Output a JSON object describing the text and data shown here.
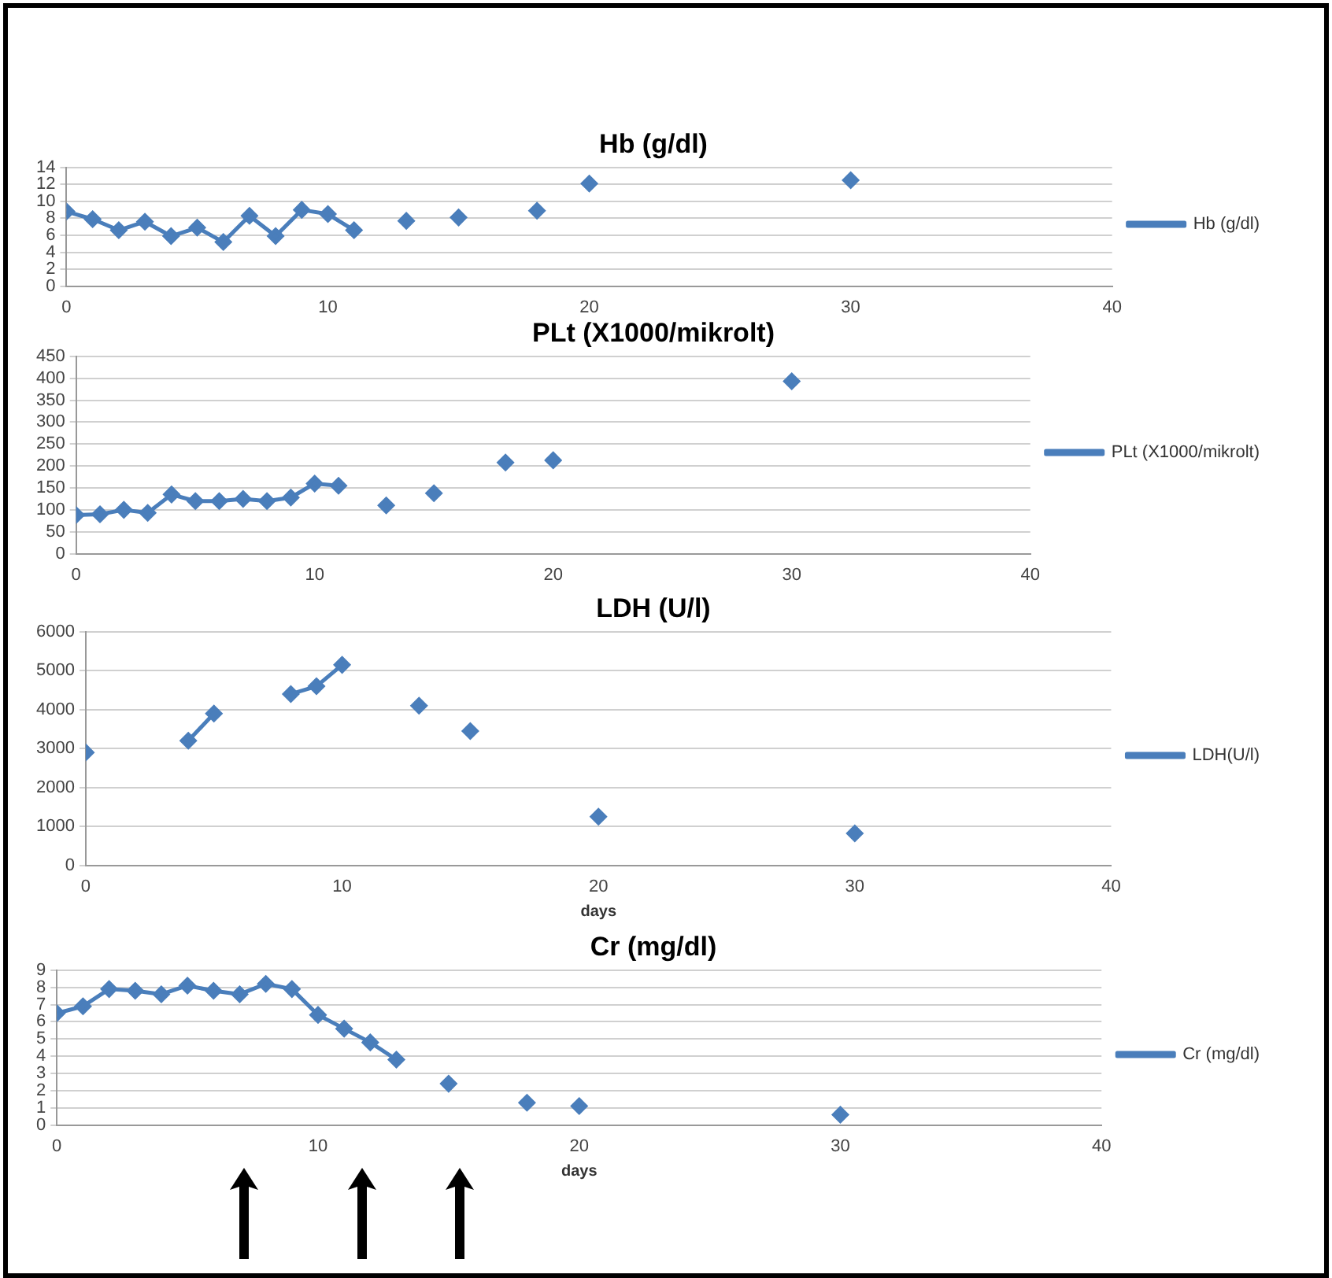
{
  "chart_data": [
    {
      "type": "line",
      "title": "Hb (g/dl)",
      "x": [
        0,
        1,
        2,
        3,
        4,
        5,
        6,
        7,
        8,
        9,
        10,
        11,
        12,
        13,
        14,
        15,
        16,
        18,
        19,
        20,
        25,
        30
      ],
      "series": [
        {
          "name": "Hb (g/dl)",
          "color": "#4a7ebb",
          "values": [
            8.8,
            7.9,
            6.6,
            7.6,
            5.9,
            6.9,
            5.2,
            8.3,
            5.9,
            9.0,
            8.5,
            6.6,
            null,
            7.7,
            null,
            8.1,
            null,
            8.9,
            null,
            12.1,
            null,
            12.5
          ]
        }
      ],
      "xlim": [
        0,
        40
      ],
      "xticks": [
        0,
        10,
        20,
        30,
        40
      ],
      "ylim": [
        0,
        14
      ],
      "yticks": [
        0,
        2,
        4,
        6,
        8,
        10,
        12,
        14
      ],
      "grid": "y",
      "legend": "right",
      "marker": "diamond",
      "line_style": "solid"
    },
    {
      "type": "line",
      "title": "PLt (X1000/mikrolt)",
      "x": [
        0,
        1,
        2,
        3,
        4,
        5,
        6,
        7,
        8,
        9,
        10,
        11,
        12,
        13,
        14,
        15,
        16,
        18,
        19,
        20,
        25,
        30
      ],
      "series": [
        {
          "name": "PLt (X1000/mikrolt)",
          "color": "#4a7ebb",
          "values": [
            88,
            90,
            100,
            93,
            135,
            120,
            120,
            125,
            120,
            128,
            160,
            155,
            null,
            110,
            null,
            138,
            null,
            208,
            null,
            213,
            null,
            393
          ]
        }
      ],
      "xlim": [
        0,
        40
      ],
      "xticks": [
        0,
        10,
        20,
        30,
        40
      ],
      "ylim": [
        0,
        450
      ],
      "yticks": [
        0,
        50,
        100,
        150,
        200,
        250,
        300,
        350,
        400,
        450
      ],
      "grid": "y",
      "legend": "right",
      "marker": "diamond",
      "line_style": "solid"
    },
    {
      "type": "line",
      "title": "LDH (U/l)",
      "xlabel": "days",
      "x": [
        0,
        2,
        4,
        5,
        6,
        8,
        9,
        10,
        11,
        13,
        14,
        15,
        17,
        20,
        25,
        30
      ],
      "series": [
        {
          "name": "LDH(U/l)",
          "color": "#4a7ebb",
          "values": [
            2900,
            null,
            3200,
            3900,
            null,
            4400,
            4600,
            5150,
            null,
            4100,
            null,
            3450,
            null,
            1250,
            null,
            820
          ]
        }
      ],
      "xlim": [
        0,
        40
      ],
      "xticks": [
        0,
        10,
        20,
        30,
        40
      ],
      "ylim": [
        0,
        6000
      ],
      "yticks": [
        0,
        1000,
        2000,
        3000,
        4000,
        5000,
        6000
      ],
      "grid": "y",
      "legend": "right",
      "marker": "diamond",
      "line_style": "solid"
    },
    {
      "type": "line",
      "title": "Cr (mg/dl)",
      "xlabel": "days",
      "x": [
        0,
        1,
        2,
        3,
        4,
        5,
        6,
        7,
        8,
        9,
        10,
        11,
        12,
        13,
        14,
        15,
        16,
        18,
        19,
        20,
        25,
        30
      ],
      "series": [
        {
          "name": "Cr (mg/dl)",
          "color": "#4a7ebb",
          "values": [
            6.5,
            6.9,
            7.9,
            7.8,
            7.6,
            8.1,
            7.8,
            7.6,
            8.2,
            7.9,
            6.4,
            5.6,
            4.8,
            3.8,
            null,
            2.4,
            null,
            1.3,
            null,
            1.1,
            null,
            0.6
          ]
        }
      ],
      "xlim": [
        0,
        40
      ],
      "xticks": [
        0,
        10,
        20,
        30,
        40
      ],
      "ylim": [
        0,
        9
      ],
      "yticks": [
        0,
        1,
        2,
        3,
        4,
        5,
        6,
        7,
        8,
        9
      ],
      "grid": "y",
      "legend": "right",
      "marker": "diamond",
      "line_style": "solid"
    }
  ]
}
